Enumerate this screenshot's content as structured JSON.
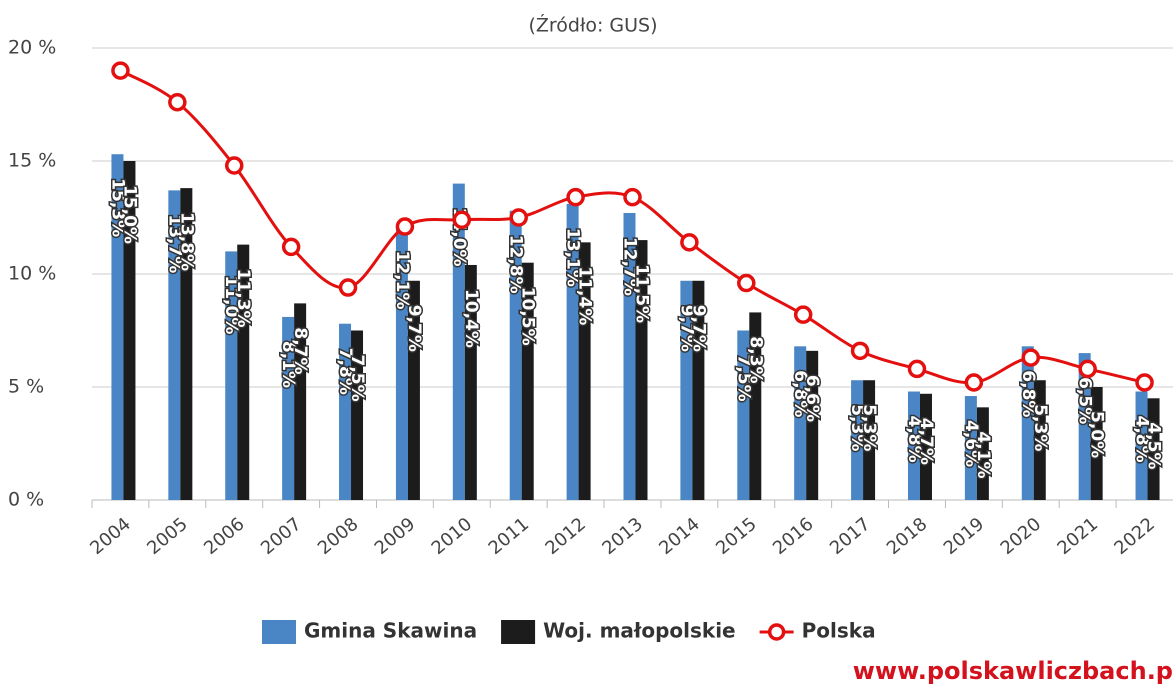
{
  "chart_data": {
    "type": "bar_line",
    "title": "(Źródło: GUS)",
    "watermark": "www.polskawliczbach.p",
    "categories": [
      "2004",
      "2005",
      "2006",
      "2007",
      "2008",
      "2009",
      "2010",
      "2011",
      "2012",
      "2013",
      "2014",
      "2015",
      "2016",
      "2017",
      "2018",
      "2019",
      "2020",
      "2021",
      "2022"
    ],
    "series": [
      {
        "name": "Gmina Skawina",
        "type": "bar",
        "color": "#4a86c5",
        "values": [
          15.3,
          13.7,
          11.0,
          8.1,
          7.8,
          12.1,
          14.0,
          12.8,
          13.1,
          12.7,
          9.7,
          7.5,
          6.8,
          5.3,
          4.8,
          4.6,
          6.8,
          6.5,
          4.8
        ],
        "value_labels": [
          "15,3%",
          "13,7%",
          "11,0%",
          "8,1%",
          "7,8%",
          "12,1%",
          "14,0%",
          "12,8%",
          "13,1%",
          "12,7%",
          "9,7%",
          "7,5%",
          "6,8%",
          "5,3%",
          "4,8%",
          "4,6%",
          "6,8%",
          "6,5%",
          "4,8%"
        ]
      },
      {
        "name": "Woj. małopolskie",
        "type": "bar",
        "color": "#1c1c1c",
        "values": [
          15.0,
          13.8,
          11.3,
          8.7,
          7.5,
          9.7,
          10.4,
          10.5,
          11.4,
          11.5,
          9.7,
          8.3,
          6.6,
          5.3,
          4.7,
          4.1,
          5.3,
          5.0,
          4.5
        ],
        "value_labels": [
          "15,0%",
          "13,8%",
          "11,3%",
          "8,7%",
          "7,5%",
          "9,7%",
          "10,4%",
          "10,5%",
          "11,4%",
          "11,5%",
          "9,7%",
          "8,3%",
          "6,6%",
          "5,3%",
          "4,7%",
          "4,1%",
          "5,3%",
          "5,0%",
          "4,5%"
        ]
      },
      {
        "name": "Polska",
        "type": "line",
        "color": "#e3100f",
        "values": [
          19.0,
          17.6,
          14.8,
          11.2,
          9.4,
          12.1,
          12.4,
          12.5,
          13.4,
          13.4,
          11.4,
          9.6,
          8.2,
          6.6,
          5.8,
          5.2,
          6.3,
          5.8,
          5.2
        ]
      }
    ],
    "ylim": [
      0,
      20
    ],
    "yticks": [
      {
        "value": 0,
        "label": "0 %"
      },
      {
        "value": 5,
        "label": "5 %"
      },
      {
        "value": 10,
        "label": "10 %"
      },
      {
        "value": 15,
        "label": "15 %"
      },
      {
        "value": 20,
        "label": "20 %"
      }
    ],
    "grid": true,
    "legend": "bottom"
  }
}
